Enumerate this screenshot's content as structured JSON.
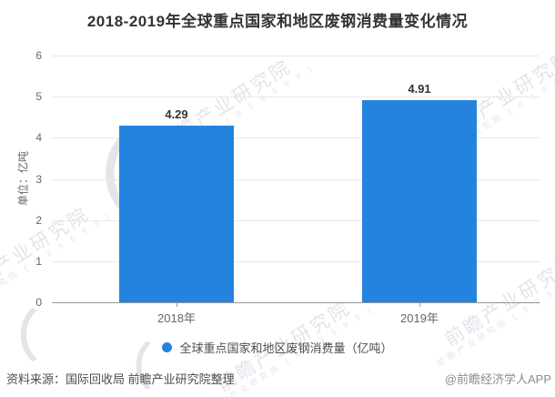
{
  "title": "2018-2019年全球重点国家和地区废钢消费量变化情况",
  "y_axis": {
    "unit_label": "单位：亿吨",
    "tick_labels": [
      "0",
      "1",
      "2",
      "3",
      "4",
      "5",
      "6"
    ]
  },
  "chart_data": {
    "type": "bar",
    "categories": [
      "2018年",
      "2019年"
    ],
    "values": [
      4.29,
      4.91
    ],
    "value_labels": [
      "4.29",
      "4.91"
    ],
    "title": "2018-2019年全球重点国家和地区废钢消费量变化情况",
    "xlabel": "",
    "ylabel": "单位：亿吨",
    "ylim": [
      0,
      6
    ],
    "y_tick_step": 1,
    "grid": true,
    "bar_color": "#2583e0",
    "legend_position": "bottom"
  },
  "legend": {
    "label": "全球重点国家和地区废钢消费量（亿吨）",
    "marker_color": "#2583e0"
  },
  "footer": {
    "source": "资料来源：国际回收局 前瞻产业研究院整理",
    "credit": "@前瞻经济学人APP"
  },
  "watermark": {
    "text": "前瞻产业研究院",
    "subtext": "前瞻产业研究院 ( 8 3 9 5 9 9 )",
    "logo_glyph": "（"
  },
  "colors": {
    "bar": "#2583e0",
    "title_text": "#333333",
    "axis_text": "#666666",
    "gridline": "#e8e8e8",
    "axis_line": "#999999"
  }
}
